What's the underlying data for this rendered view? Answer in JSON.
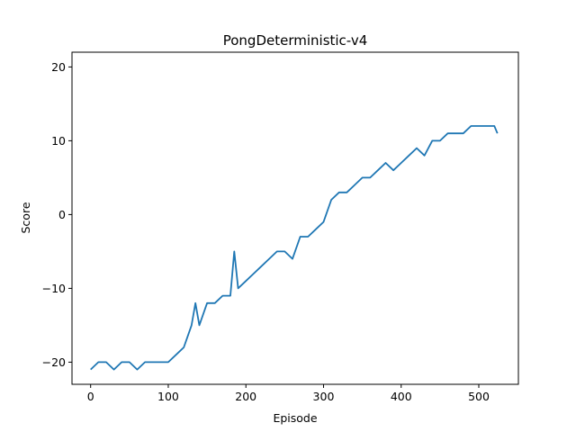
{
  "chart_data": {
    "type": "line",
    "title": "PongDeterministic-v4",
    "xlabel": "Episode",
    "ylabel": "Score",
    "xlim": [
      -24,
      551
    ],
    "ylim": [
      -23,
      22
    ],
    "x_ticks": [
      0,
      100,
      200,
      300,
      400,
      500
    ],
    "y_ticks": [
      -20,
      -10,
      0,
      10,
      20
    ],
    "x_tick_labels": [
      "0",
      "100",
      "200",
      "300",
      "400",
      "500"
    ],
    "y_tick_labels": [
      "−20",
      "−10",
      "0",
      "10",
      "20"
    ],
    "grid": false,
    "series_color": "#1f77b4",
    "series": [
      {
        "x": [
          0,
          10,
          20,
          30,
          40,
          50,
          60,
          70,
          80,
          90,
          100,
          110,
          120,
          130,
          135,
          140,
          150,
          160,
          170,
          180,
          185,
          190,
          200,
          210,
          220,
          230,
          240,
          250,
          260,
          270,
          280,
          290,
          300,
          310,
          320,
          330,
          340,
          350,
          360,
          370,
          380,
          390,
          400,
          410,
          420,
          430,
          440,
          450,
          460,
          470,
          480,
          490,
          500,
          510,
          520,
          524
        ],
        "y": [
          -21,
          -20,
          -20,
          -21,
          -20,
          -20,
          -21,
          -20,
          -20,
          -20,
          -20,
          -19,
          -18,
          -15,
          -12,
          -15,
          -12,
          -12,
          -11,
          -11,
          -5,
          -10,
          -9,
          -8,
          -7,
          -6,
          -5,
          -5,
          -6,
          -3,
          -3,
          -2,
          -1,
          2,
          3,
          3,
          4,
          5,
          5,
          6,
          7,
          6,
          7,
          8,
          9,
          8,
          10,
          10,
          11,
          11,
          11,
          12,
          12,
          12,
          12,
          11
        ]
      }
    ]
  }
}
